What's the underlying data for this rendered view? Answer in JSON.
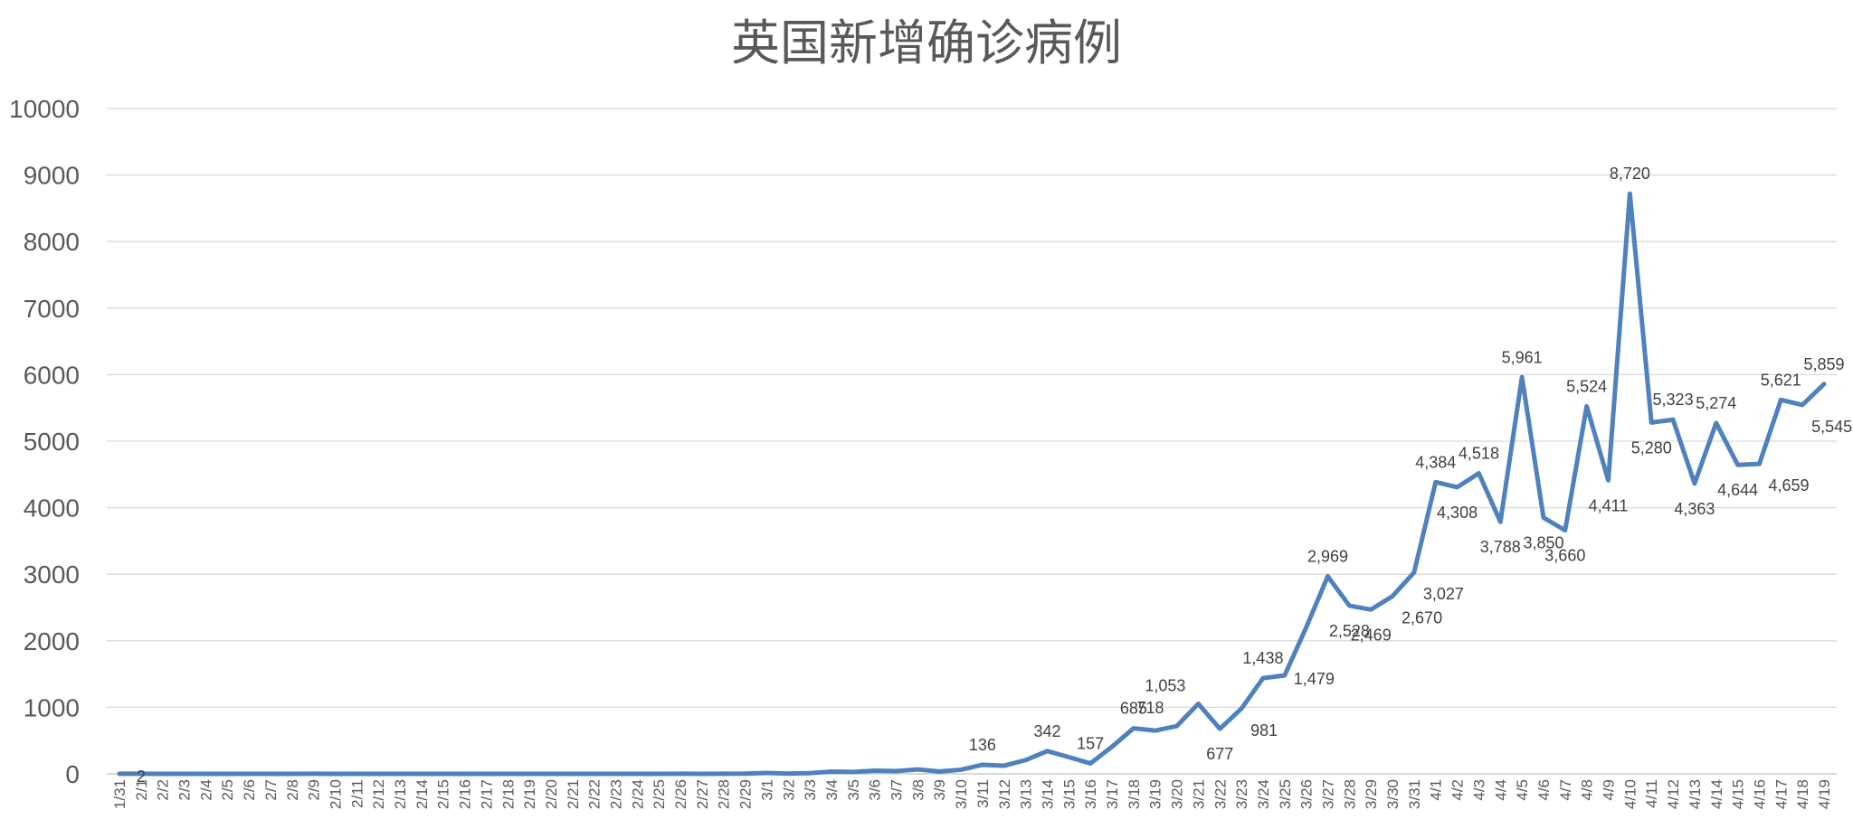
{
  "chart_data": {
    "type": "line",
    "title": "英国新增确诊病例",
    "xlabel": "",
    "ylabel": "",
    "ylim": [
      0,
      10000
    ],
    "yticks": [
      "0",
      "1000",
      "2000",
      "3000",
      "4000",
      "5000",
      "6000",
      "7000",
      "8000",
      "9000",
      "10000"
    ],
    "grid": true,
    "line_color": "#4f81bd",
    "categories": [
      "1/31",
      "2/1",
      "2/2",
      "2/3",
      "2/4",
      "2/5",
      "2/6",
      "2/7",
      "2/8",
      "2/9",
      "2/10",
      "2/11",
      "2/12",
      "2/13",
      "2/14",
      "2/15",
      "2/16",
      "2/17",
      "2/18",
      "2/19",
      "2/20",
      "2/21",
      "2/22",
      "2/23",
      "2/24",
      "2/25",
      "2/26",
      "2/27",
      "2/28",
      "2/29",
      "3/1",
      "3/2",
      "3/3",
      "3/4",
      "3/5",
      "3/6",
      "3/7",
      "3/8",
      "3/9",
      "3/10",
      "3/11",
      "3/12",
      "3/13",
      "3/14",
      "3/15",
      "3/16",
      "3/17",
      "3/18",
      "3/19",
      "3/20",
      "3/21",
      "3/22",
      "3/23",
      "3/24",
      "3/25",
      "3/26",
      "3/27",
      "3/28",
      "3/29",
      "3/30",
      "3/31",
      "4/1",
      "4/2",
      "4/3",
      "4/4",
      "4/5",
      "4/6",
      "4/7",
      "4/8",
      "4/9",
      "4/10",
      "4/11",
      "4/12",
      "4/13",
      "4/14",
      "4/15",
      "4/16",
      "4/17",
      "4/18",
      "4/19"
    ],
    "values": [
      2,
      2,
      0,
      0,
      0,
      0,
      0,
      0,
      0,
      1,
      0,
      0,
      0,
      0,
      0,
      0,
      0,
      0,
      0,
      0,
      0,
      0,
      0,
      0,
      0,
      0,
      2,
      0,
      1,
      3,
      13,
      4,
      11,
      34,
      29,
      48,
      43,
      67,
      35,
      62,
      136,
      123,
      207,
      342,
      251,
      157,
      407,
      685,
      650,
      718,
      1053,
      677,
      981,
      1438,
      1479,
      2200,
      2969,
      2528,
      2469,
      2670,
      3027,
      4384,
      4308,
      4518,
      3788,
      5961,
      3850,
      3660,
      5524,
      4411,
      8720,
      5280,
      5323,
      4363,
      5274,
      4644,
      4659,
      5621,
      5545,
      5859
    ],
    "data_labels": [
      {
        "index": 1,
        "text": "2",
        "pos": "center"
      },
      {
        "index": 40,
        "text": "136",
        "pos": "above"
      },
      {
        "index": 43,
        "text": "342",
        "pos": "above"
      },
      {
        "index": 45,
        "text": "157",
        "pos": "above"
      },
      {
        "index": 47,
        "text": "685",
        "pos": "above"
      },
      {
        "index": 49,
        "text": "718",
        "pos": "above-left"
      },
      {
        "index": 50,
        "text": "1,053",
        "pos": "above-left"
      },
      {
        "index": 51,
        "text": "677",
        "pos": "below"
      },
      {
        "index": 52,
        "text": "981",
        "pos": "below-right"
      },
      {
        "index": 53,
        "text": "1,438",
        "pos": "above"
      },
      {
        "index": 54,
        "text": "1,479",
        "pos": "right"
      },
      {
        "index": 56,
        "text": "2,969",
        "pos": "above"
      },
      {
        "index": 57,
        "text": "2,528",
        "pos": "below"
      },
      {
        "index": 58,
        "text": "2,469",
        "pos": "below"
      },
      {
        "index": 59,
        "text": "2,670",
        "pos": "below-right"
      },
      {
        "index": 60,
        "text": "3,027",
        "pos": "below-right"
      },
      {
        "index": 61,
        "text": "4,384",
        "pos": "above"
      },
      {
        "index": 62,
        "text": "4,308",
        "pos": "below"
      },
      {
        "index": 63,
        "text": "4,518",
        "pos": "above"
      },
      {
        "index": 64,
        "text": "3,788",
        "pos": "below"
      },
      {
        "index": 65,
        "text": "5,961",
        "pos": "above"
      },
      {
        "index": 66,
        "text": "3,850",
        "pos": "below"
      },
      {
        "index": 67,
        "text": "3,660",
        "pos": "below"
      },
      {
        "index": 68,
        "text": "5,524",
        "pos": "above"
      },
      {
        "index": 69,
        "text": "4,411",
        "pos": "below"
      },
      {
        "index": 70,
        "text": "8,720",
        "pos": "above"
      },
      {
        "index": 71,
        "text": "5,280",
        "pos": "below"
      },
      {
        "index": 72,
        "text": "5,323",
        "pos": "above"
      },
      {
        "index": 73,
        "text": "4,363",
        "pos": "below"
      },
      {
        "index": 74,
        "text": "5,274",
        "pos": "above"
      },
      {
        "index": 75,
        "text": "4,644",
        "pos": "below"
      },
      {
        "index": 76,
        "text": "4,659",
        "pos": "below-right"
      },
      {
        "index": 77,
        "text": "5,621",
        "pos": "above"
      },
      {
        "index": 78,
        "text": "5,545",
        "pos": "below-right"
      },
      {
        "index": 79,
        "text": "5,859",
        "pos": "above"
      }
    ]
  }
}
